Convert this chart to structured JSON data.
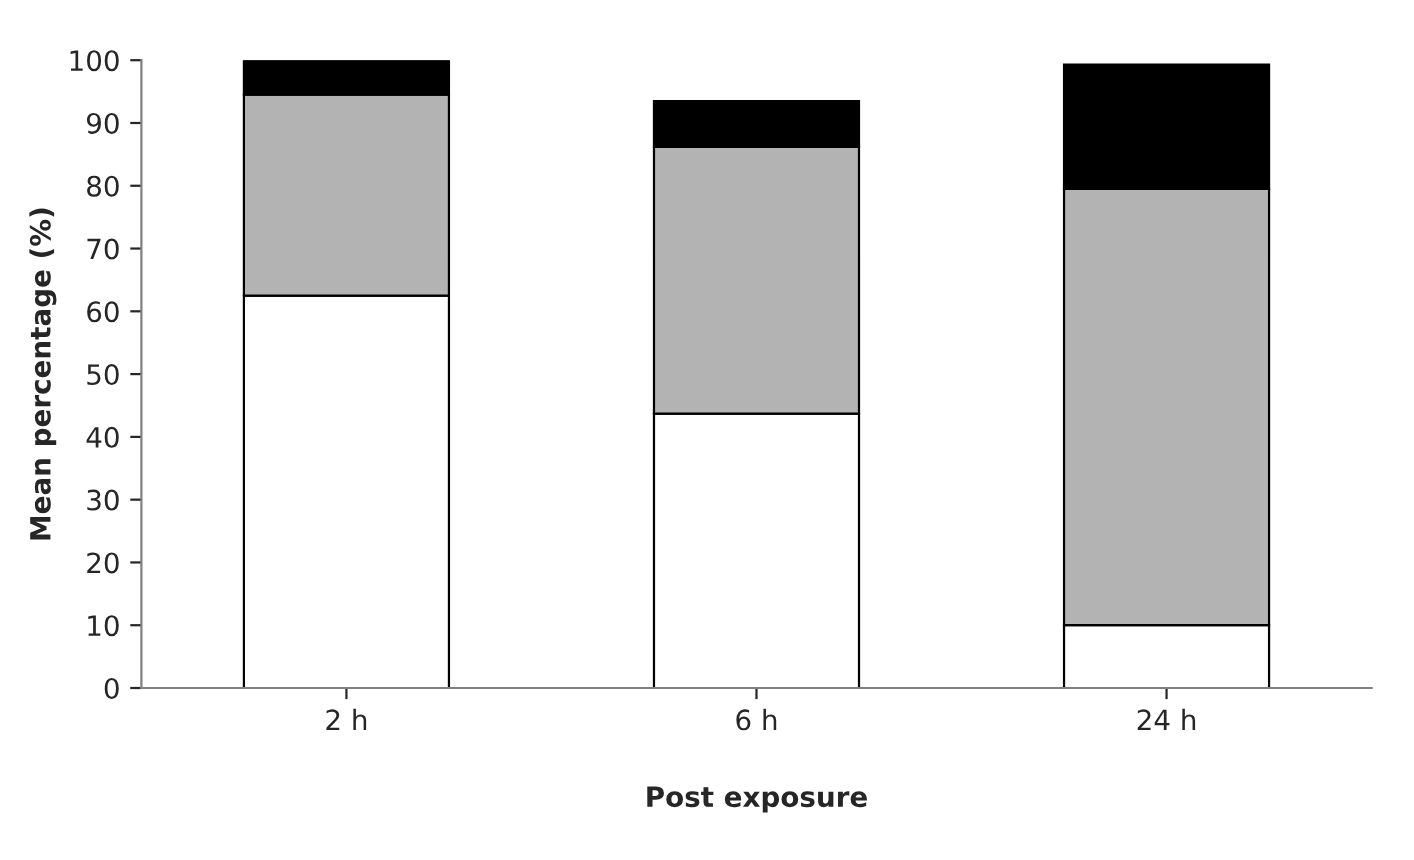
{
  "chart_data": {
    "type": "bar",
    "stacked": true,
    "xlabel": "Post exposure",
    "ylabel": "Mean percentage (%)",
    "categories": [
      "2 h",
      "6 h",
      "24 h"
    ],
    "series": [
      {
        "color": "#ffffff",
        "values": [
          62.5,
          43.7,
          10
        ]
      },
      {
        "color": "#b3b3b3",
        "values": [
          32,
          42.5,
          69.5
        ]
      },
      {
        "color": "#000000",
        "values": [
          5.5,
          7.3,
          19.8
        ]
      }
    ],
    "ylim": [
      0,
      100
    ],
    "yticks": [
      0,
      10,
      20,
      30,
      40,
      50,
      60,
      70,
      80,
      90,
      100
    ],
    "grid": false,
    "legend": false
  }
}
